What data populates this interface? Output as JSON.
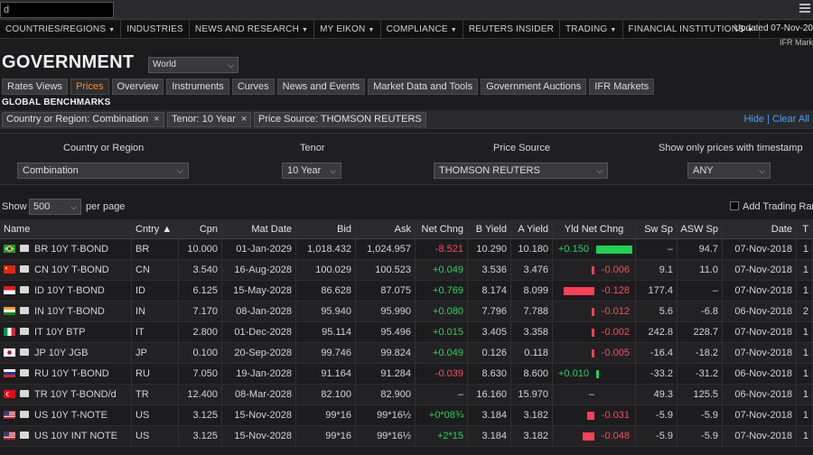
{
  "topbar": {
    "search_value": "d"
  },
  "nav": [
    {
      "label": "COUNTRIES/REGIONS",
      "caret": true
    },
    {
      "label": "INDUSTRIES",
      "caret": false
    },
    {
      "label": "NEWS AND RESEARCH",
      "caret": true
    },
    {
      "label": "MY EIKON",
      "caret": true
    },
    {
      "label": "COMPLIANCE",
      "caret": true
    },
    {
      "label": "REUTERS INSIDER",
      "caret": false
    },
    {
      "label": "TRADING",
      "caret": true
    },
    {
      "label": "FINANCIAL INSTITUTIONS",
      "caret": true
    }
  ],
  "updated": "Updated 07-Nov-20",
  "ifr": "IFR Mark",
  "page_title": "GOVERNMENT",
  "world_select": "World",
  "tabs": [
    "Rates Views",
    "Prices",
    "Overview",
    "Instruments",
    "Curves",
    "News and Events",
    "Market Data and Tools",
    "Government Auctions",
    "IFR Markets"
  ],
  "active_tab": "Prices",
  "section_label": "GLOBAL BENCHMARKS",
  "chips": [
    "Country or Region: Combination",
    "Tenor: 10 Year",
    "Price Source: THOMSON REUTERS"
  ],
  "hide_clear": "Hide | Clear All",
  "filters": {
    "country_label": "Country or Region",
    "country_value": "Combination",
    "tenor_label": "Tenor",
    "tenor_value": "10 Year",
    "source_label": "Price Source",
    "source_value": "THOMSON REUTERS",
    "timestamp_label": "Show only prices with timestamp",
    "timestamp_value": "ANY"
  },
  "show": {
    "label": "Show",
    "value": "500",
    "per_page": "per page",
    "add_trading": "Add Trading Ran"
  },
  "columns": {
    "name": "Name",
    "cntry": "Cntry ▲",
    "cpn": "Cpn",
    "mat": "Mat Date",
    "bid": "Bid",
    "ask": "Ask",
    "netchg": "Net Chng",
    "byield": "B Yield",
    "ayield": "A Yield",
    "yldnet": "Yld Net Chng",
    "swsp": "Sw Sp",
    "aswsp": "ASW Sp",
    "date": "Date",
    "extra": "T"
  },
  "rows": [
    {
      "flag": "br",
      "name": "BR 10Y T-BOND",
      "cntry": "BR",
      "cpn": "10.000",
      "mat": "01-Jan-2029",
      "bid": "1,018.432",
      "ask": "1,024.957",
      "netchg": "-8.521",
      "netdir": "neg",
      "byield": "10.290",
      "ayield": "10.180",
      "yld": "+0.150",
      "ydir": "pos",
      "yld_value": 0.15,
      "swsp": "–",
      "aswsp": "94.7",
      "date": "07-Nov-2018",
      "extra": "1"
    },
    {
      "flag": "cn",
      "name": "CN 10Y T-BOND",
      "cntry": "CN",
      "cpn": "3.540",
      "mat": "16-Aug-2028",
      "bid": "100.029",
      "ask": "100.523",
      "netchg": "+0.049",
      "netdir": "pos",
      "byield": "3.536",
      "ayield": "3.476",
      "yld": "-0.006",
      "ydir": "neg",
      "yld_value": -0.006,
      "swsp": "9.1",
      "aswsp": "11.0",
      "date": "07-Nov-2018",
      "extra": "1"
    },
    {
      "flag": "id",
      "name": "ID 10Y T-BOND",
      "cntry": "ID",
      "cpn": "6.125",
      "mat": "15-May-2028",
      "bid": "86.628",
      "ask": "87.075",
      "netchg": "+0.769",
      "netdir": "pos",
      "byield": "8.174",
      "ayield": "8.099",
      "yld": "-0.128",
      "ydir": "neg",
      "yld_value": -0.128,
      "swsp": "177.4",
      "aswsp": "–",
      "date": "07-Nov-2018",
      "extra": "1"
    },
    {
      "flag": "in",
      "name": "IN 10Y T-BOND",
      "cntry": "IN",
      "cpn": "7.170",
      "mat": "08-Jan-2028",
      "bid": "95.940",
      "ask": "95.990",
      "netchg": "+0.080",
      "netdir": "pos",
      "byield": "7.796",
      "ayield": "7.788",
      "yld": "-0.012",
      "ydir": "neg",
      "yld_value": -0.012,
      "swsp": "5.6",
      "aswsp": "-6.8",
      "date": "06-Nov-2018",
      "extra": "2"
    },
    {
      "flag": "it",
      "name": "IT 10Y BTP",
      "cntry": "IT",
      "cpn": "2.800",
      "mat": "01-Dec-2028",
      "bid": "95.114",
      "ask": "95.496",
      "netchg": "+0.015",
      "netdir": "pos",
      "byield": "3.405",
      "ayield": "3.358",
      "yld": "-0.002",
      "ydir": "neg",
      "yld_value": -0.002,
      "swsp": "242.8",
      "aswsp": "228.7",
      "date": "07-Nov-2018",
      "extra": "1"
    },
    {
      "flag": "jp",
      "name": "JP 10Y JGB",
      "cntry": "JP",
      "cpn": "0.100",
      "mat": "20-Sep-2028",
      "bid": "99.746",
      "ask": "99.824",
      "netchg": "+0.049",
      "netdir": "pos",
      "byield": "0.126",
      "ayield": "0.118",
      "yld": "-0.005",
      "ydir": "neg",
      "yld_value": -0.005,
      "swsp": "-16.4",
      "aswsp": "-18.2",
      "date": "07-Nov-2018",
      "extra": "1"
    },
    {
      "flag": "ru",
      "name": "RU 10Y T-BOND",
      "cntry": "RU",
      "cpn": "7.050",
      "mat": "19-Jan-2028",
      "bid": "91.164",
      "ask": "91.284",
      "netchg": "-0.039",
      "netdir": "neg",
      "byield": "8.630",
      "ayield": "8.600",
      "yld": "+0.010",
      "ydir": "pos",
      "yld_value": 0.01,
      "swsp": "-33.2",
      "aswsp": "-31.2",
      "date": "06-Nov-2018",
      "extra": "1"
    },
    {
      "flag": "tr",
      "name": "TR 10Y T-BOND/d",
      "cntry": "TR",
      "cpn": "12.400",
      "mat": "08-Mar-2028",
      "bid": "82.100",
      "ask": "82.900",
      "netchg": "–",
      "netdir": "",
      "byield": "16.160",
      "ayield": "15.970",
      "yld": "–",
      "ydir": "",
      "yld_value": 0,
      "swsp": "49.3",
      "aswsp": "125.5",
      "date": "06-Nov-2018",
      "extra": "1"
    },
    {
      "flag": "us",
      "name": "US 10Y T-NOTE",
      "cntry": "US",
      "cpn": "3.125",
      "mat": "15-Nov-2028",
      "bid": "99*16",
      "ask": "99*16½",
      "netchg": "+0*08¾",
      "netdir": "pos",
      "byield": "3.184",
      "ayield": "3.182",
      "yld": "-0.031",
      "ydir": "neg",
      "yld_value": -0.031,
      "swsp": "-5.9",
      "aswsp": "-5.9",
      "date": "07-Nov-2018",
      "extra": "1"
    },
    {
      "flag": "us",
      "name": "US 10Y INT NOTE",
      "cntry": "US",
      "cpn": "3.125",
      "mat": "15-Nov-2028",
      "bid": "99*16",
      "ask": "99*16½",
      "netchg": "+2*15",
      "netdir": "pos",
      "byield": "3.184",
      "ayield": "3.182",
      "yld": "-0.048",
      "ydir": "neg",
      "yld_value": -0.048,
      "swsp": "-5.9",
      "aswsp": "-5.9",
      "date": "07-Nov-2018",
      "extra": "1"
    }
  ]
}
